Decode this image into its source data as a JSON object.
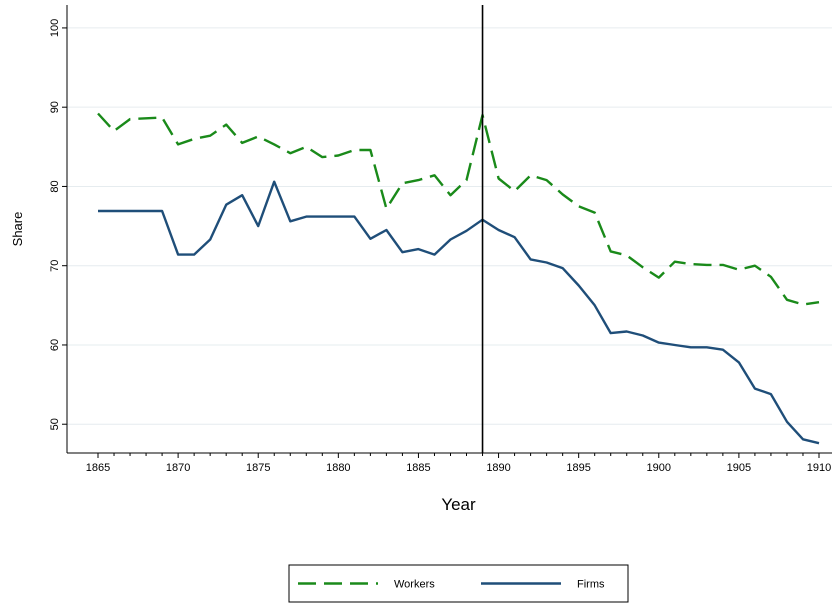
{
  "chart_data": {
    "type": "line",
    "xlabel": "Year",
    "ylabel": "Share",
    "xlim": [
      1865,
      1910
    ],
    "ylim": [
      47,
      101
    ],
    "x_ticks": [
      1865,
      1870,
      1875,
      1880,
      1885,
      1890,
      1895,
      1900,
      1905,
      1910
    ],
    "y_ticks": [
      50,
      60,
      70,
      80,
      90,
      100
    ],
    "grid": "horizontal",
    "vertical_marker": 1889,
    "legend_position": "bottom",
    "x": [
      1865,
      1866,
      1867,
      1868,
      1869,
      1870,
      1871,
      1872,
      1873,
      1874,
      1875,
      1876,
      1877,
      1878,
      1879,
      1880,
      1881,
      1882,
      1883,
      1884,
      1885,
      1886,
      1887,
      1888,
      1889,
      1890,
      1891,
      1892,
      1893,
      1894,
      1895,
      1896,
      1897,
      1898,
      1899,
      1900,
      1901,
      1902,
      1903,
      1904,
      1905,
      1906,
      1907,
      1908,
      1909,
      1910
    ],
    "series": [
      {
        "name": "Workers",
        "color": "#1a8a1a",
        "style": "dashed",
        "values": [
          89.2,
          87.0,
          88.5,
          88.6,
          88.7,
          85.3,
          86.0,
          86.4,
          87.8,
          85.5,
          86.3,
          85.3,
          84.2,
          85.0,
          83.7,
          83.9,
          84.6,
          84.6,
          77.2,
          80.4,
          80.8,
          81.4,
          78.9,
          80.8,
          89.0,
          81.0,
          79.4,
          81.4,
          80.8,
          79.0,
          77.5,
          76.7,
          71.8,
          71.3,
          69.8,
          68.5,
          70.5,
          70.2,
          70.1,
          70.1,
          69.5,
          70.0,
          68.6,
          65.7,
          65.1,
          65.4
        ]
      },
      {
        "name": "Firms",
        "color": "#1f4e79",
        "style": "solid",
        "values": [
          76.9,
          76.9,
          76.9,
          76.9,
          76.9,
          71.4,
          71.4,
          73.3,
          77.7,
          78.9,
          75.0,
          80.6,
          75.6,
          76.2,
          76.2,
          76.2,
          76.2,
          73.4,
          74.5,
          71.7,
          72.1,
          71.4,
          73.3,
          74.4,
          75.8,
          74.5,
          73.6,
          70.8,
          70.4,
          69.7,
          67.5,
          65.0,
          61.5,
          61.7,
          61.2,
          60.3,
          60.0,
          59.7,
          59.7,
          59.4,
          57.8,
          54.5,
          53.8,
          50.3,
          48.1,
          47.6
        ]
      }
    ]
  }
}
